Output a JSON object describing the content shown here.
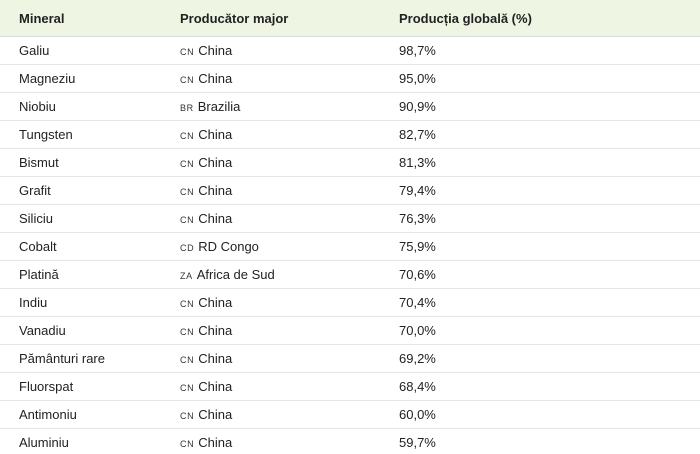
{
  "table": {
    "headers": {
      "mineral": "Mineral",
      "producer": "Producător major",
      "share": "Producția globală (%)"
    },
    "rows": [
      {
        "mineral": "Galiu",
        "flag": "CN",
        "country": "China",
        "share": "98,7%"
      },
      {
        "mineral": "Magneziu",
        "flag": "CN",
        "country": "China",
        "share": "95,0%"
      },
      {
        "mineral": "Niobiu",
        "flag": "BR",
        "country": "Brazilia",
        "share": "90,9%"
      },
      {
        "mineral": "Tungsten",
        "flag": "CN",
        "country": "China",
        "share": "82,7%"
      },
      {
        "mineral": "Bismut",
        "flag": "CN",
        "country": "China",
        "share": "81,3%"
      },
      {
        "mineral": "Grafit",
        "flag": "CN",
        "country": "China",
        "share": "79,4%"
      },
      {
        "mineral": "Siliciu",
        "flag": "CN",
        "country": "China",
        "share": "76,3%"
      },
      {
        "mineral": "Cobalt",
        "flag": "CD",
        "country": "RD Congo",
        "share": "75,9%"
      },
      {
        "mineral": "Platină",
        "flag": "ZA",
        "country": "Africa de Sud",
        "share": "70,6%"
      },
      {
        "mineral": "Indiu",
        "flag": "CN",
        "country": "China",
        "share": "70,4%"
      },
      {
        "mineral": "Vanadiu",
        "flag": "CN",
        "country": "China",
        "share": "70,0%"
      },
      {
        "mineral": "Pământuri rare",
        "flag": "CN",
        "country": "China",
        "share": "69,2%"
      },
      {
        "mineral": "Fluorspat",
        "flag": "CN",
        "country": "China",
        "share": "68,4%"
      },
      {
        "mineral": "Antimoniu",
        "flag": "CN",
        "country": "China",
        "share": "60,0%"
      },
      {
        "mineral": "Aluminiu",
        "flag": "CN",
        "country": "China",
        "share": "59,7%"
      }
    ]
  },
  "colors": {
    "header_bg": "#eef5e3",
    "row_border": "#e6e6e6",
    "text": "#222222"
  }
}
